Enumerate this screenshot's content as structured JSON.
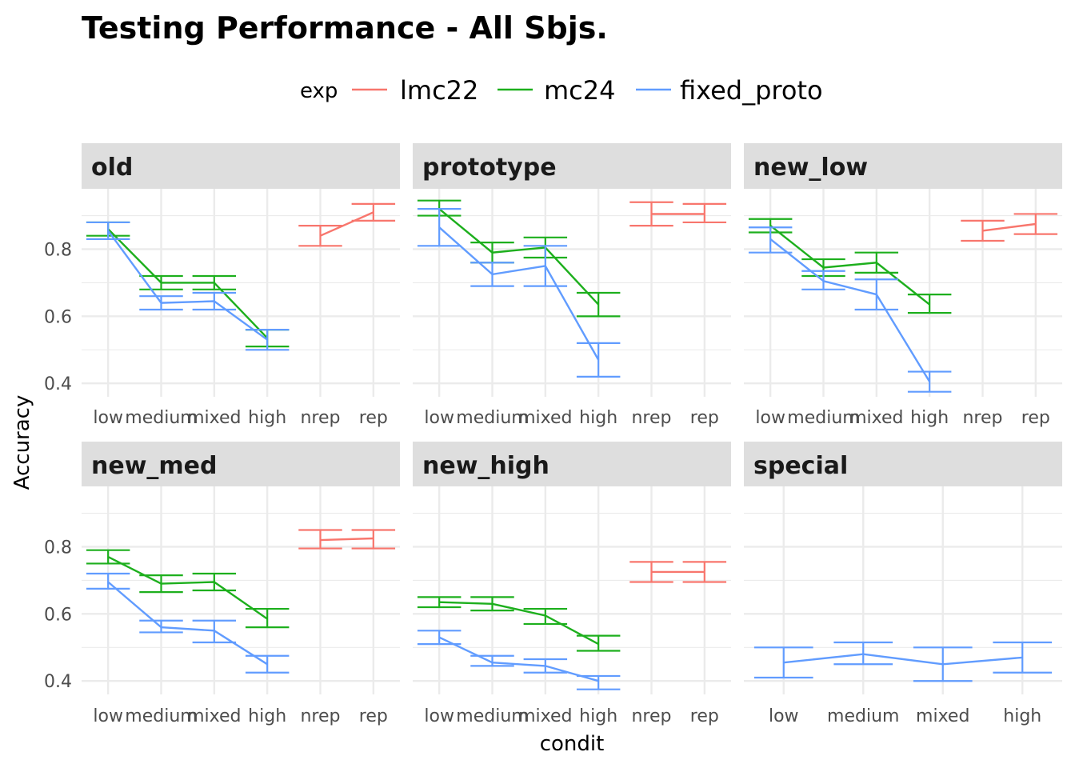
{
  "chart_data": {
    "type": "line",
    "title": "Testing Performance - All Sbjs.",
    "xlabel": "condit",
    "ylabel": "Accuracy",
    "ylim": [
      0.36,
      0.98
    ],
    "yticks": [
      0.4,
      0.6,
      0.8
    ],
    "grid": true,
    "legend": {
      "title": "exp",
      "placement": "top",
      "entries": [
        {
          "name": "lmc22",
          "color": "#F8766D"
        },
        {
          "name": "mc24",
          "color": "#1DAF1D"
        },
        {
          "name": "fixed_proto",
          "color": "#619CFF"
        }
      ]
    },
    "facets": [
      {
        "name": "old",
        "categories": [
          "low",
          "medium",
          "mixed",
          "high",
          "nrep",
          "rep"
        ],
        "series": [
          {
            "name": "lmc22",
            "x": [
              "nrep",
              "rep"
            ],
            "y": [
              0.84,
              0.91
            ],
            "lo": [
              0.81,
              0.885
            ],
            "hi": [
              0.87,
              0.935
            ]
          },
          {
            "name": "mc24",
            "x": [
              "low",
              "medium",
              "mixed",
              "high"
            ],
            "y": [
              0.86,
              0.7,
              0.7,
              0.535
            ],
            "lo": [
              0.84,
              0.68,
              0.68,
              0.51
            ],
            "hi": [
              0.88,
              0.72,
              0.72,
              0.56
            ]
          },
          {
            "name": "fixed_proto",
            "x": [
              "low",
              "medium",
              "mixed",
              "high"
            ],
            "y": [
              0.855,
              0.64,
              0.645,
              0.53
            ],
            "lo": [
              0.83,
              0.62,
              0.62,
              0.5
            ],
            "hi": [
              0.88,
              0.66,
              0.67,
              0.56
            ]
          }
        ]
      },
      {
        "name": "prototype",
        "categories": [
          "low",
          "medium",
          "mixed",
          "high",
          "nrep",
          "rep"
        ],
        "series": [
          {
            "name": "lmc22",
            "x": [
              "nrep",
              "rep"
            ],
            "y": [
              0.905,
              0.905
            ],
            "lo": [
              0.87,
              0.88
            ],
            "hi": [
              0.94,
              0.935
            ]
          },
          {
            "name": "mc24",
            "x": [
              "low",
              "medium",
              "mixed",
              "high"
            ],
            "y": [
              0.92,
              0.79,
              0.805,
              0.635
            ],
            "lo": [
              0.9,
              0.76,
              0.775,
              0.6
            ],
            "hi": [
              0.945,
              0.82,
              0.835,
              0.67
            ]
          },
          {
            "name": "fixed_proto",
            "x": [
              "low",
              "medium",
              "mixed",
              "high"
            ],
            "y": [
              0.865,
              0.725,
              0.75,
              0.47
            ],
            "lo": [
              0.81,
              0.69,
              0.69,
              0.42
            ],
            "hi": [
              0.92,
              0.76,
              0.81,
              0.52
            ]
          }
        ]
      },
      {
        "name": "new_low",
        "categories": [
          "low",
          "medium",
          "mixed",
          "high",
          "nrep",
          "rep"
        ],
        "series": [
          {
            "name": "lmc22",
            "x": [
              "nrep",
              "rep"
            ],
            "y": [
              0.855,
              0.875
            ],
            "lo": [
              0.825,
              0.845
            ],
            "hi": [
              0.885,
              0.905
            ]
          },
          {
            "name": "mc24",
            "x": [
              "low",
              "medium",
              "mixed",
              "high"
            ],
            "y": [
              0.87,
              0.745,
              0.76,
              0.635
            ],
            "lo": [
              0.85,
              0.72,
              0.73,
              0.61
            ],
            "hi": [
              0.89,
              0.77,
              0.79,
              0.665
            ]
          },
          {
            "name": "fixed_proto",
            "x": [
              "low",
              "medium",
              "mixed",
              "high"
            ],
            "y": [
              0.83,
              0.705,
              0.665,
              0.405
            ],
            "lo": [
              0.79,
              0.68,
              0.62,
              0.375
            ],
            "hi": [
              0.865,
              0.735,
              0.71,
              0.435
            ]
          }
        ]
      },
      {
        "name": "new_med",
        "categories": [
          "low",
          "medium",
          "mixed",
          "high",
          "nrep",
          "rep"
        ],
        "series": [
          {
            "name": "lmc22",
            "x": [
              "nrep",
              "rep"
            ],
            "y": [
              0.82,
              0.825
            ],
            "lo": [
              0.795,
              0.795
            ],
            "hi": [
              0.85,
              0.85
            ]
          },
          {
            "name": "mc24",
            "x": [
              "low",
              "medium",
              "mixed",
              "high"
            ],
            "y": [
              0.77,
              0.69,
              0.695,
              0.585
            ],
            "lo": [
              0.75,
              0.665,
              0.67,
              0.56
            ],
            "hi": [
              0.79,
              0.715,
              0.72,
              0.615
            ]
          },
          {
            "name": "fixed_proto",
            "x": [
              "low",
              "medium",
              "mixed",
              "high"
            ],
            "y": [
              0.695,
              0.56,
              0.55,
              0.45
            ],
            "lo": [
              0.675,
              0.545,
              0.515,
              0.425
            ],
            "hi": [
              0.72,
              0.58,
              0.58,
              0.475
            ]
          }
        ]
      },
      {
        "name": "new_high",
        "categories": [
          "low",
          "medium",
          "mixed",
          "high",
          "nrep",
          "rep"
        ],
        "series": [
          {
            "name": "lmc22",
            "x": [
              "nrep",
              "rep"
            ],
            "y": [
              0.725,
              0.725
            ],
            "lo": [
              0.695,
              0.695
            ],
            "hi": [
              0.755,
              0.755
            ]
          },
          {
            "name": "mc24",
            "x": [
              "low",
              "medium",
              "mixed",
              "high"
            ],
            "y": [
              0.635,
              0.63,
              0.595,
              0.51
            ],
            "lo": [
              0.62,
              0.61,
              0.57,
              0.49
            ],
            "hi": [
              0.65,
              0.65,
              0.615,
              0.535
            ]
          },
          {
            "name": "fixed_proto",
            "x": [
              "low",
              "medium",
              "mixed",
              "high"
            ],
            "y": [
              0.53,
              0.455,
              0.445,
              0.4
            ],
            "lo": [
              0.51,
              0.445,
              0.425,
              0.375
            ],
            "hi": [
              0.55,
              0.475,
              0.465,
              0.415
            ]
          }
        ]
      },
      {
        "name": "special",
        "categories": [
          "low",
          "medium",
          "mixed",
          "high"
        ],
        "series": [
          {
            "name": "fixed_proto",
            "x": [
              "low",
              "medium",
              "mixed",
              "high"
            ],
            "y": [
              0.455,
              0.48,
              0.45,
              0.47
            ],
            "lo": [
              0.41,
              0.45,
              0.4,
              0.425
            ],
            "hi": [
              0.5,
              0.515,
              0.5,
              0.515
            ]
          }
        ]
      }
    ]
  }
}
